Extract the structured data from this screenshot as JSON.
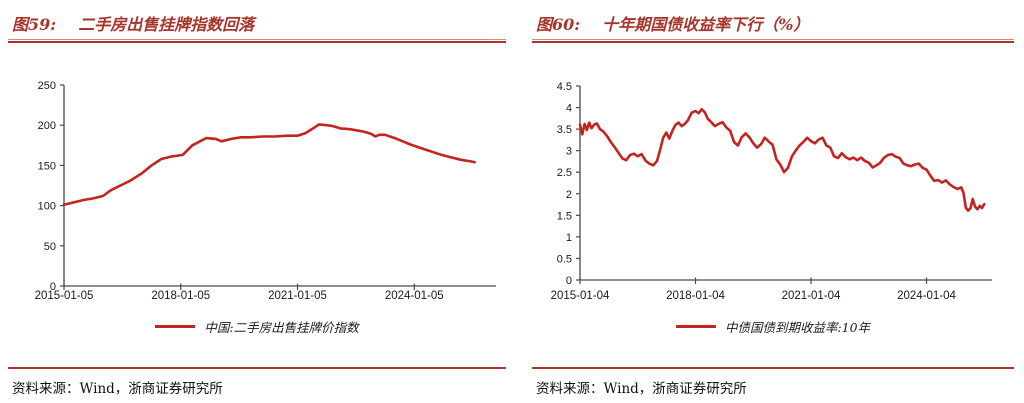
{
  "colors": {
    "accent_red": "#a6352c",
    "line_red": "#c32420",
    "axis_gray": "#4a4a4a",
    "text_black": "#1a1a1a"
  },
  "figures": [
    {
      "number": "图59:",
      "title": "二手房出售挂牌指数回落",
      "legend": "中国:二手房出售挂牌价指数",
      "source": "资料来源：Wind，浙商证券研究所"
    },
    {
      "number": "图60:",
      "title": "十年期国债收益率下行（%）",
      "legend": "中债国债到期收益率:10年",
      "source": "资料来源：Wind，浙商证券研究所"
    }
  ],
  "chart_data": [
    {
      "type": "line",
      "title": "二手房出售挂牌指数回落",
      "xlabel": "",
      "ylabel": "",
      "grid": false,
      "legend_position": "bottom",
      "ylim": [
        0,
        250
      ],
      "yticks": [
        0,
        50,
        100,
        150,
        200,
        250
      ],
      "ytick_labels": [
        "0",
        "50",
        "100",
        "150",
        "200",
        "250"
      ],
      "xlim": [
        2015.0,
        2026.1
      ],
      "xticks": [
        2015,
        2018,
        2021,
        2024
      ],
      "xtick_labels": [
        "2015-01-05",
        "2018-01-05",
        "2021-01-05",
        "2024-01-05"
      ],
      "series": [
        {
          "name": "中国:二手房出售挂牌价指数",
          "color": "#c32420",
          "x": [
            2015.0,
            2015.25,
            2015.5,
            2015.75,
            2016.0,
            2016.2,
            2016.45,
            2016.7,
            2017.0,
            2017.25,
            2017.5,
            2017.75,
            2018.05,
            2018.3,
            2018.65,
            2018.9,
            2019.05,
            2019.3,
            2019.55,
            2019.8,
            2020.1,
            2020.4,
            2020.75,
            2021.0,
            2021.2,
            2021.4,
            2021.55,
            2021.75,
            2021.9,
            2022.1,
            2022.35,
            2022.7,
            2022.9,
            2023.0,
            2023.1,
            2023.25,
            2023.5,
            2023.9,
            2024.2,
            2024.45,
            2024.7,
            2024.95,
            2025.2,
            2025.45,
            2025.55
          ],
          "y": [
            101,
            104,
            107,
            109,
            112,
            119,
            125,
            131,
            140,
            150,
            158,
            161,
            163,
            175,
            184,
            183,
            180,
            183,
            185,
            185,
            186,
            186,
            187,
            187,
            190,
            196,
            201,
            200,
            199,
            196,
            195,
            192,
            189,
            186,
            188,
            188,
            184,
            176,
            171,
            167,
            163,
            160,
            157,
            155,
            154
          ]
        }
      ]
    },
    {
      "type": "line",
      "title": "十年期国债收益率下行（%）",
      "xlabel": "",
      "ylabel": "",
      "grid": false,
      "legend_position": "bottom",
      "ylim": [
        0,
        4.5
      ],
      "yticks": [
        0,
        0.5,
        1,
        1.5,
        2,
        2.5,
        3,
        3.5,
        4,
        4.5
      ],
      "ytick_labels": [
        "0",
        "0.5",
        "1",
        "1.5",
        "2",
        "2.5",
        "3",
        "3.5",
        "4",
        "4.5"
      ],
      "xlim": [
        2015.0,
        2025.7
      ],
      "xticks": [
        2015,
        2018,
        2021,
        2024
      ],
      "xtick_labels": [
        "2015-01-04",
        "2018-01-04",
        "2021-01-04",
        "2024-01-04"
      ],
      "series": [
        {
          "name": "中债国债到期收益率:10年",
          "color": "#c32420",
          "x": [
            2015.0,
            2015.06,
            2015.12,
            2015.18,
            2015.24,
            2015.3,
            2015.36,
            2015.44,
            2015.52,
            2015.6,
            2015.7,
            2015.8,
            2015.9,
            2016.0,
            2016.1,
            2016.2,
            2016.3,
            2016.4,
            2016.5,
            2016.6,
            2016.7,
            2016.8,
            2016.9,
            2017.0,
            2017.08,
            2017.16,
            2017.24,
            2017.32,
            2017.4,
            2017.48,
            2017.56,
            2017.64,
            2017.72,
            2017.8,
            2017.9,
            2018.0,
            2018.08,
            2018.16,
            2018.24,
            2018.32,
            2018.4,
            2018.5,
            2018.6,
            2018.7,
            2018.8,
            2018.9,
            2019.0,
            2019.1,
            2019.2,
            2019.3,
            2019.4,
            2019.5,
            2019.6,
            2019.7,
            2019.8,
            2019.9,
            2020.0,
            2020.1,
            2020.2,
            2020.3,
            2020.4,
            2020.5,
            2020.6,
            2020.7,
            2020.8,
            2020.9,
            2021.0,
            2021.1,
            2021.2,
            2021.3,
            2021.4,
            2021.5,
            2021.6,
            2021.7,
            2021.8,
            2021.9,
            2022.0,
            2022.1,
            2022.2,
            2022.3,
            2022.4,
            2022.5,
            2022.6,
            2022.7,
            2022.8,
            2022.9,
            2023.0,
            2023.1,
            2023.2,
            2023.3,
            2023.4,
            2023.5,
            2023.6,
            2023.7,
            2023.8,
            2023.9,
            2024.0,
            2024.1,
            2024.2,
            2024.3,
            2024.4,
            2024.5,
            2024.6,
            2024.7,
            2024.8,
            2024.9,
            2024.96,
            2025.02,
            2025.08,
            2025.14,
            2025.2,
            2025.26,
            2025.32,
            2025.38,
            2025.44,
            2025.5
          ],
          "y": [
            3.6,
            3.38,
            3.62,
            3.48,
            3.65,
            3.52,
            3.6,
            3.63,
            3.5,
            3.45,
            3.34,
            3.2,
            3.08,
            2.95,
            2.82,
            2.78,
            2.9,
            2.93,
            2.87,
            2.92,
            2.77,
            2.7,
            2.66,
            2.76,
            3.02,
            3.3,
            3.42,
            3.28,
            3.46,
            3.6,
            3.65,
            3.57,
            3.62,
            3.7,
            3.88,
            3.92,
            3.87,
            3.96,
            3.89,
            3.74,
            3.67,
            3.57,
            3.62,
            3.66,
            3.54,
            3.46,
            3.2,
            3.12,
            3.31,
            3.4,
            3.31,
            3.17,
            3.07,
            3.15,
            3.3,
            3.21,
            3.14,
            2.8,
            2.68,
            2.5,
            2.6,
            2.86,
            3.0,
            3.12,
            3.2,
            3.3,
            3.22,
            3.17,
            3.26,
            3.3,
            3.12,
            3.07,
            2.87,
            2.83,
            2.94,
            2.85,
            2.8,
            2.84,
            2.78,
            2.84,
            2.76,
            2.72,
            2.61,
            2.66,
            2.72,
            2.84,
            2.9,
            2.92,
            2.86,
            2.83,
            2.7,
            2.66,
            2.64,
            2.68,
            2.7,
            2.6,
            2.56,
            2.42,
            2.3,
            2.32,
            2.26,
            2.31,
            2.22,
            2.16,
            2.11,
            2.15,
            2.02,
            1.68,
            1.61,
            1.66,
            1.88,
            1.7,
            1.64,
            1.72,
            1.67,
            1.76
          ]
        }
      ]
    }
  ]
}
